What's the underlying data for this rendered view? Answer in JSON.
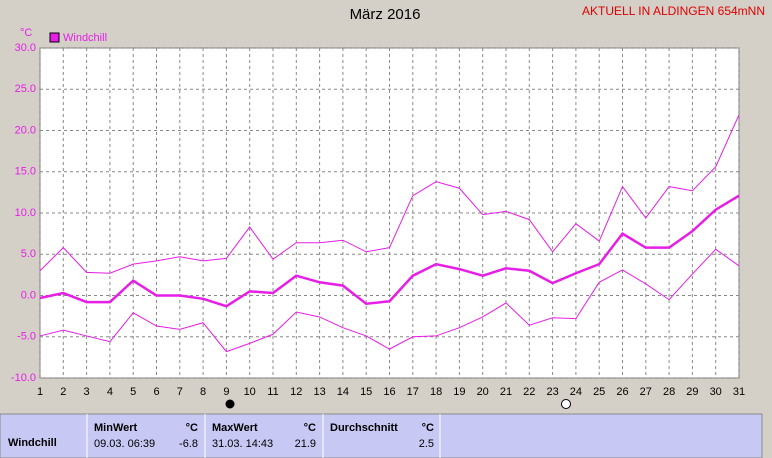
{
  "chart_data": {
    "type": "line",
    "title": "März 2016",
    "subtitle": "AKTUELL IN ALDINGEN 654mNN",
    "y_label": "°C",
    "legend": "Windchill",
    "legend_position": "top-left",
    "x": [
      1,
      2,
      3,
      4,
      5,
      6,
      7,
      8,
      9,
      10,
      11,
      12,
      13,
      14,
      15,
      16,
      17,
      18,
      19,
      20,
      21,
      22,
      23,
      24,
      25,
      26,
      27,
      28,
      29,
      30,
      31
    ],
    "xlim": [
      1,
      31
    ],
    "xticks": [
      1,
      2,
      3,
      4,
      5,
      6,
      7,
      8,
      9,
      10,
      11,
      12,
      13,
      14,
      15,
      16,
      17,
      18,
      19,
      20,
      21,
      22,
      23,
      24,
      25,
      26,
      27,
      28,
      29,
      30,
      31
    ],
    "ylim": [
      -10,
      30
    ],
    "yticks": [
      {
        "value": -10,
        "label": "-10.0"
      },
      {
        "value": -5,
        "label": "-5.0"
      },
      {
        "value": 0,
        "label": "0.0"
      },
      {
        "value": 5,
        "label": "5.0"
      },
      {
        "value": 10,
        "label": "10.0"
      },
      {
        "value": 15,
        "label": "15.0"
      },
      {
        "value": 20,
        "label": "20.0"
      },
      {
        "value": 25,
        "label": "25.0"
      },
      {
        "value": 30,
        "label": "30.0"
      }
    ],
    "grid": true,
    "series": [
      {
        "color": "#e61ee6",
        "values": [
          3.0,
          5.8,
          2.8,
          2.7,
          3.8,
          4.2,
          4.7,
          4.2,
          4.5,
          8.3,
          4.4,
          6.4,
          6.4,
          6.7,
          5.3,
          5.8,
          12.1,
          13.8,
          13.0,
          9.8,
          10.2,
          9.2,
          5.3,
          8.7,
          6.6,
          13.2,
          9.4,
          13.2,
          12.7,
          15.6,
          21.9
        ]
      },
      {
        "color": "#e61ee6",
        "values": [
          -0.3,
          0.3,
          -0.8,
          -0.8,
          1.8,
          0.0,
          0.0,
          -0.4,
          -1.3,
          0.5,
          0.3,
          2.4,
          1.6,
          1.2,
          -1.0,
          -0.7,
          2.4,
          3.8,
          3.2,
          2.4,
          3.3,
          3.0,
          1.5,
          2.7,
          3.8,
          7.5,
          5.8,
          5.8,
          7.8,
          10.4,
          12.1
        ]
      },
      {
        "color": "#e61ee6",
        "values": [
          -4.9,
          -4.2,
          -4.9,
          -5.6,
          -2.1,
          -3.7,
          -4.1,
          -3.3,
          -6.8,
          -5.8,
          -4.7,
          -2.0,
          -2.6,
          -3.9,
          -4.9,
          -6.5,
          -5.0,
          -4.9,
          -3.9,
          -2.6,
          -0.9,
          -3.6,
          -2.7,
          -2.8,
          1.6,
          3.1,
          1.4,
          -0.5,
          2.6,
          5.6,
          3.6
        ]
      }
    ]
  },
  "table": {
    "row_label": "Windchill",
    "min": {
      "header": "MinWert",
      "unit": "°C",
      "time": "09.03.  06:39",
      "value": "-6.8"
    },
    "max": {
      "header": "MaxWert",
      "unit": "°C",
      "time": "31.03.  14:43",
      "value": "21.9"
    },
    "avg": {
      "header": "Durchschnitt",
      "unit": "°C",
      "value": "2.5"
    }
  }
}
